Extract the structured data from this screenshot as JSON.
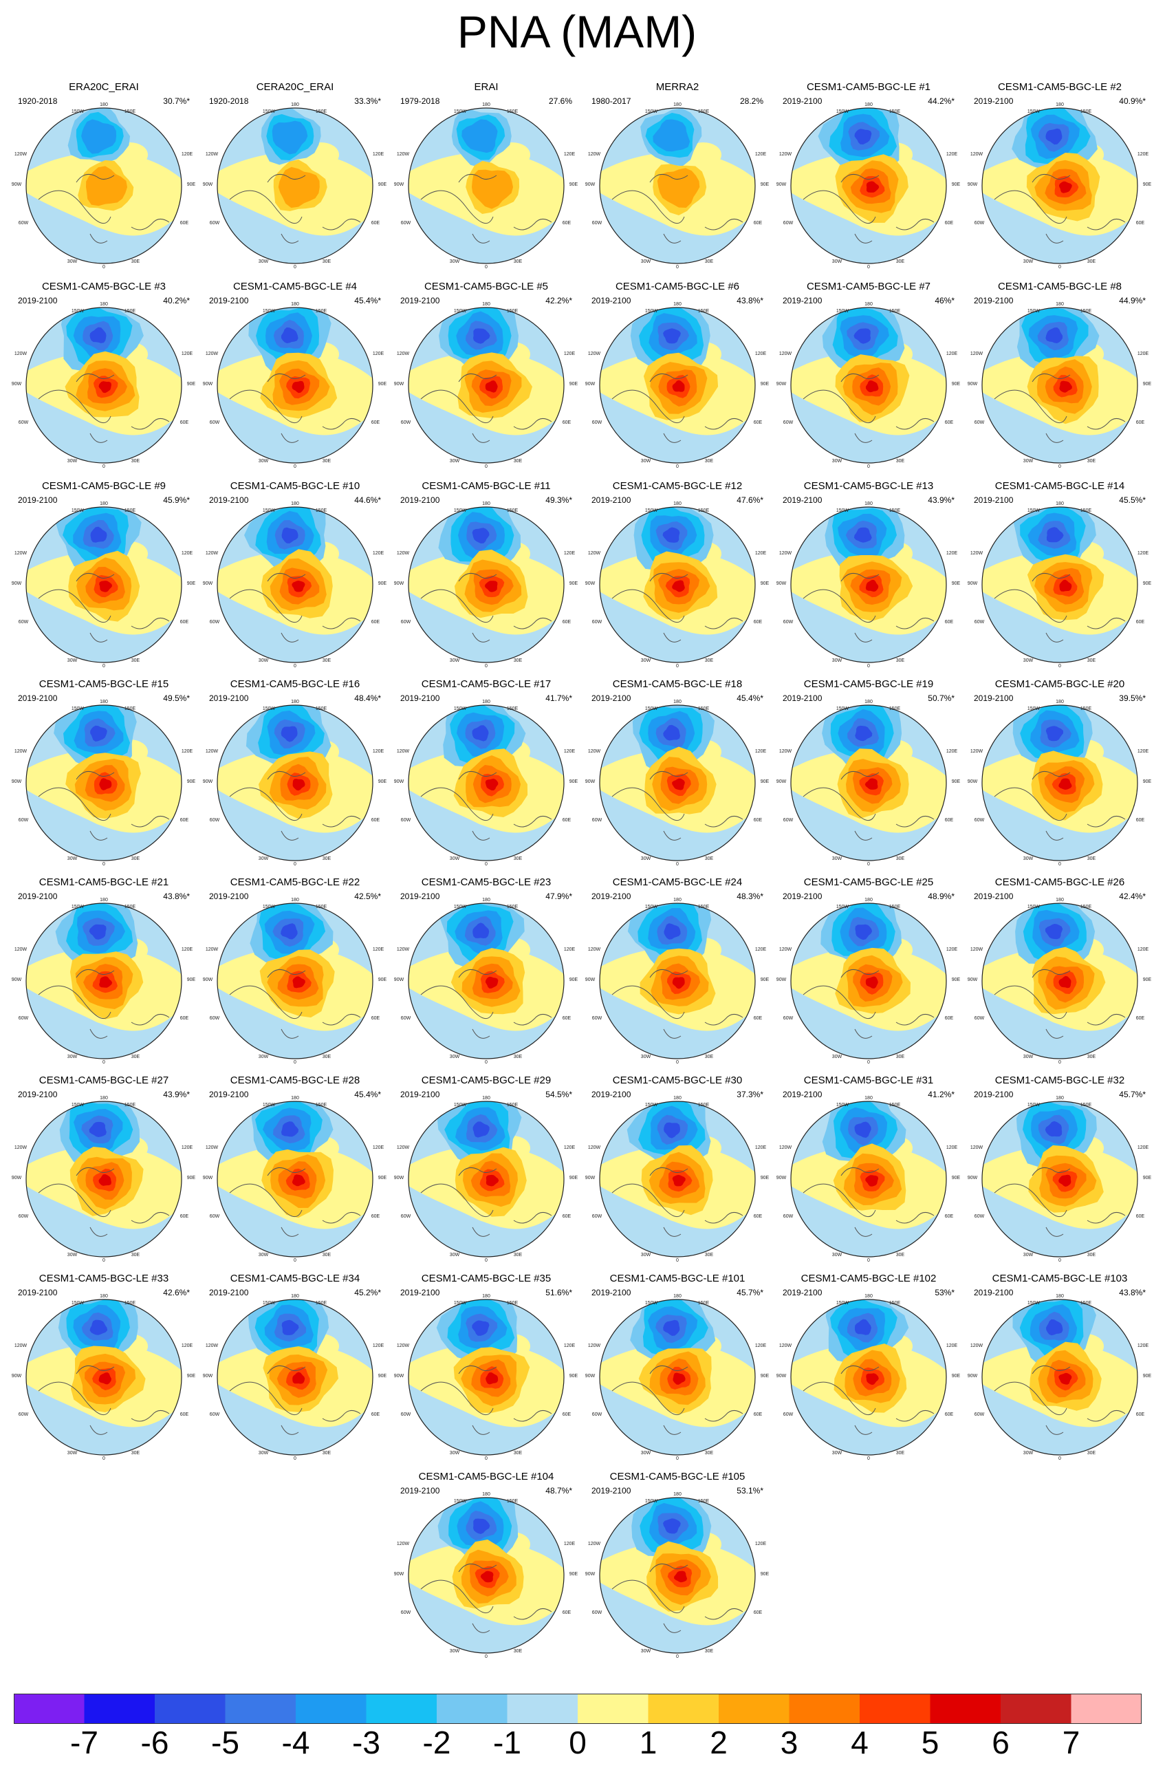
{
  "title": "PNA (MAM)",
  "colorbar": {
    "labels": [
      "-7",
      "-6",
      "-5",
      "-4",
      "-3",
      "-2",
      "-1",
      "0",
      "1",
      "2",
      "3",
      "4",
      "5",
      "6",
      "7"
    ],
    "colors": [
      "#7d1ff2",
      "#1a14f2",
      "#2d4ee6",
      "#3a78e8",
      "#1e9bf2",
      "#17c0f4",
      "#75c8f2",
      "#b3def3",
      "#fff890",
      "#ffd130",
      "#ffa50a",
      "#ff7a00",
      "#ff3d00",
      "#e00000",
      "#c62020",
      "#ffb4b4"
    ]
  },
  "map_labels": {
    "top": "180",
    "top_left": "150W",
    "top_right": "150E",
    "upper_left": "120W",
    "upper_right": "120E",
    "left_left": "90W",
    "left_right": "90E",
    "right_left": "90W",
    "right_right": "90E",
    "lower_left": "60W",
    "lower_right": "60E",
    "bottom_left": "30W",
    "bottom_right": "30E",
    "bottom": "0"
  },
  "panels": [
    {
      "title": "ERA20C_ERAI",
      "period": "1920-2018",
      "pct": "30.7%*"
    },
    {
      "title": "CERA20C_ERAI",
      "period": "1920-2018",
      "pct": "33.3%*"
    },
    {
      "title": "ERAI",
      "period": "1979-2018",
      "pct": "27.6%"
    },
    {
      "title": "MERRA2",
      "period": "1980-2017",
      "pct": "28.2%"
    },
    {
      "title": "CESM1-CAM5-BGC-LE #1",
      "period": "2019-2100",
      "pct": "44.2%*"
    },
    {
      "title": "CESM1-CAM5-BGC-LE #2",
      "period": "2019-2100",
      "pct": "40.9%*"
    },
    {
      "title": "CESM1-CAM5-BGC-LE #3",
      "period": "2019-2100",
      "pct": "40.2%*"
    },
    {
      "title": "CESM1-CAM5-BGC-LE #4",
      "period": "2019-2100",
      "pct": "45.4%*"
    },
    {
      "title": "CESM1-CAM5-BGC-LE #5",
      "period": "2019-2100",
      "pct": "42.2%*"
    },
    {
      "title": "CESM1-CAM5-BGC-LE #6",
      "period": "2019-2100",
      "pct": "43.8%*"
    },
    {
      "title": "CESM1-CAM5-BGC-LE #7",
      "period": "2019-2100",
      "pct": "46%*"
    },
    {
      "title": "CESM1-CAM5-BGC-LE #8",
      "period": "2019-2100",
      "pct": "44.9%*"
    },
    {
      "title": "CESM1-CAM5-BGC-LE #9",
      "period": "2019-2100",
      "pct": "45.9%*"
    },
    {
      "title": "CESM1-CAM5-BGC-LE #10",
      "period": "2019-2100",
      "pct": "44.6%*"
    },
    {
      "title": "CESM1-CAM5-BGC-LE #11",
      "period": "2019-2100",
      "pct": "49.3%*"
    },
    {
      "title": "CESM1-CAM5-BGC-LE #12",
      "period": "2019-2100",
      "pct": "47.6%*"
    },
    {
      "title": "CESM1-CAM5-BGC-LE #13",
      "period": "2019-2100",
      "pct": "43.9%*"
    },
    {
      "title": "CESM1-CAM5-BGC-LE #14",
      "period": "2019-2100",
      "pct": "45.5%*"
    },
    {
      "title": "CESM1-CAM5-BGC-LE #15",
      "period": "2019-2100",
      "pct": "49.5%*"
    },
    {
      "title": "CESM1-CAM5-BGC-LE #16",
      "period": "2019-2100",
      "pct": "48.4%*"
    },
    {
      "title": "CESM1-CAM5-BGC-LE #17",
      "period": "2019-2100",
      "pct": "41.7%*"
    },
    {
      "title": "CESM1-CAM5-BGC-LE #18",
      "period": "2019-2100",
      "pct": "45.4%*"
    },
    {
      "title": "CESM1-CAM5-BGC-LE #19",
      "period": "2019-2100",
      "pct": "50.7%*"
    },
    {
      "title": "CESM1-CAM5-BGC-LE #20",
      "period": "2019-2100",
      "pct": "39.5%*"
    },
    {
      "title": "CESM1-CAM5-BGC-LE #21",
      "period": "2019-2100",
      "pct": "43.8%*"
    },
    {
      "title": "CESM1-CAM5-BGC-LE #22",
      "period": "2019-2100",
      "pct": "42.5%*"
    },
    {
      "title": "CESM1-CAM5-BGC-LE #23",
      "period": "2019-2100",
      "pct": "47.9%*"
    },
    {
      "title": "CESM1-CAM5-BGC-LE #24",
      "period": "2019-2100",
      "pct": "48.3%*"
    },
    {
      "title": "CESM1-CAM5-BGC-LE #25",
      "period": "2019-2100",
      "pct": "48.9%*"
    },
    {
      "title": "CESM1-CAM5-BGC-LE #26",
      "period": "2019-2100",
      "pct": "42.4%*"
    },
    {
      "title": "CESM1-CAM5-BGC-LE #27",
      "period": "2019-2100",
      "pct": "43.9%*"
    },
    {
      "title": "CESM1-CAM5-BGC-LE #28",
      "period": "2019-2100",
      "pct": "45.4%*"
    },
    {
      "title": "CESM1-CAM5-BGC-LE #29",
      "period": "2019-2100",
      "pct": "54.5%*"
    },
    {
      "title": "CESM1-CAM5-BGC-LE #30",
      "period": "2019-2100",
      "pct": "37.3%*"
    },
    {
      "title": "CESM1-CAM5-BGC-LE #31",
      "period": "2019-2100",
      "pct": "41.2%*"
    },
    {
      "title": "CESM1-CAM5-BGC-LE #32",
      "period": "2019-2100",
      "pct": "45.7%*"
    },
    {
      "title": "CESM1-CAM5-BGC-LE #33",
      "period": "2019-2100",
      "pct": "42.6%*"
    },
    {
      "title": "CESM1-CAM5-BGC-LE #34",
      "period": "2019-2100",
      "pct": "45.2%*"
    },
    {
      "title": "CESM1-CAM5-BGC-LE #35",
      "period": "2019-2100",
      "pct": "51.6%*"
    },
    {
      "title": "CESM1-CAM5-BGC-LE #101",
      "period": "2019-2100",
      "pct": "45.7%*"
    },
    {
      "title": "CESM1-CAM5-BGC-LE #102",
      "period": "2019-2100",
      "pct": "53%*"
    },
    {
      "title": "CESM1-CAM5-BGC-LE #103",
      "period": "2019-2100",
      "pct": "43.8%*"
    },
    {
      "title": "CESM1-CAM5-BGC-LE #104",
      "period": "2019-2100",
      "pct": "48.7%*"
    },
    {
      "title": "CESM1-CAM5-BGC-LE #105",
      "period": "2019-2100",
      "pct": "53.1%*"
    }
  ]
}
